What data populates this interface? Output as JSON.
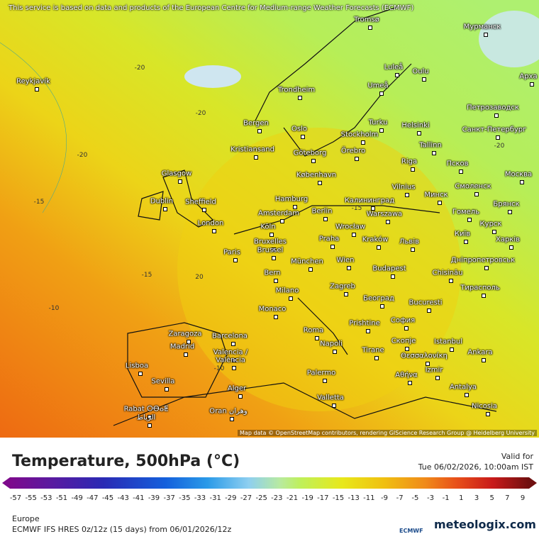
{
  "header": {
    "notice": "This service is based on data and products of the European Centre for Medium-range Weather Forecasts (ECMWF)"
  },
  "map": {
    "attribution": "Map data © OpenStreetMap contributors, rendering GIScience Research Group @ Heidelberg University",
    "cities": [
      "Tromsø",
      "Мурманск",
      "Reykjavík",
      "Luleå",
      "Oulu",
      "Арха",
      "Umeå",
      "Trondheim",
      "Петрозаводск",
      "Bergen",
      "Oslo",
      "Turku",
      "Helsinki",
      "Санкт-Петербург",
      "Stockholm",
      "Tallinn",
      "Kristiansand",
      "Göteborg",
      "Örebro",
      "Riga",
      "Псков",
      "Glasgow",
      "København",
      "Москва",
      "Vilnius",
      "Минск",
      "Смоленск",
      "Dublin",
      "Sheffield",
      "Hamburg",
      "Калининград",
      "Брянск",
      "Amsterdam",
      "Berlin",
      "Warszawa",
      "Гомель",
      "London",
      "Köln",
      "Wrocław",
      "Курск",
      "Київ",
      "Bruxelles",
      "Brussel",
      "Praha",
      "Kraków",
      "Львів",
      "Харків",
      "Paris",
      "München",
      "Wien",
      "Дніпропетровськ",
      "Budapest",
      "Chisinău",
      "Bern",
      "Zagreb",
      "Тирасполь",
      "Milano",
      "Београд",
      "Bucuresti",
      "Monaco",
      "Prishtine",
      "София",
      "Roma",
      "Zaragoza",
      "Barcelona",
      "Скопје",
      "Istanbul",
      "Madrid",
      "Napoli",
      "Tirane",
      "Θεσσαλονίκη",
      "Ankara",
      "Valencia /",
      "València",
      "Lisboa",
      "Izmir",
      "Αθήνα",
      "Palermo",
      "Sevilla",
      "Antalya",
      "Alger",
      "Valletta",
      "Nicosia",
      "Rabat ⵔⴱⴰⵟ",
      "الرباط",
      "Oran وهران"
    ],
    "contour_labels": [
      "-20",
      "-20",
      "-20",
      "-15",
      "-15",
      "-10",
      "20",
      "-15",
      "-20",
      "-10"
    ]
  },
  "legend": {
    "title": "Temperature, 500hPa (°C)",
    "valid_label": "Valid for",
    "valid_time": "Tue 06/02/2026, 10:00am IST",
    "ticks": [
      -57,
      -55,
      -53,
      -51,
      -49,
      -47,
      -45,
      -43,
      -41,
      -39,
      -37,
      -35,
      -33,
      -31,
      -29,
      -27,
      -25,
      -23,
      -21,
      -19,
      -17,
      -15,
      -13,
      -11,
      -9,
      -7,
      -5,
      -3,
      -1,
      1,
      3,
      5,
      7,
      9
    ]
  },
  "footer": {
    "region": "Europe",
    "model": "ECMWF IFS HRES 0z/12z (15 days) from 06/01/2026/12z",
    "ecmwf_logo": "ECMWF",
    "brand": "meteologix.com"
  }
}
